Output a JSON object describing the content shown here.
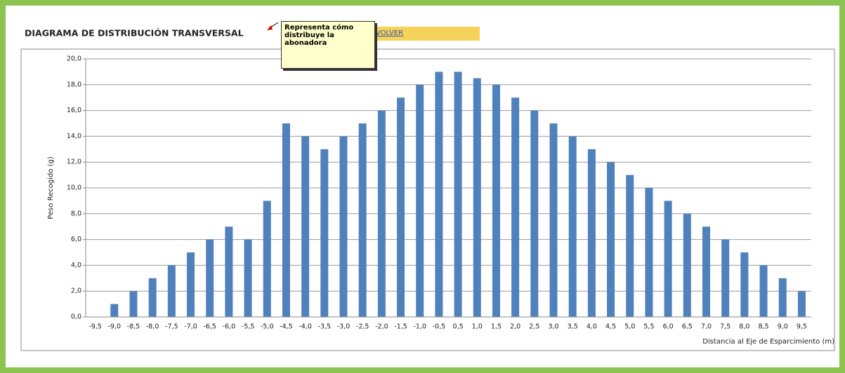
{
  "chart_data": {
    "type": "bar",
    "title": "DIAGRAMA DE DISTRIBUCIÓN TRANSVERSAL",
    "x_label": "Distancia al Eje de Esparcimiento (m)",
    "y_label": "Peso Recogido (g)",
    "categories": [
      "-9,5",
      "-9,0",
      "-8,5",
      "-8,0",
      "-7,5",
      "-7,0",
      "-6,5",
      "-6,0",
      "-5,5",
      "-5,0",
      "-4,5",
      "-4,0",
      "-3,5",
      "-3,0",
      "-2,5",
      "-2,0",
      "-1,5",
      "-1,0",
      "-0,5",
      "0,5",
      "1,0",
      "1,5",
      "2,0",
      "2,5",
      "3,0",
      "3,5",
      "4,0",
      "4,5",
      "5,0",
      "5,5",
      "6,0",
      "6,5",
      "7,0",
      "7,5",
      "8,0",
      "8,5",
      "9,0",
      "9,5"
    ],
    "values": [
      0,
      1,
      2,
      3,
      4,
      5,
      6,
      7,
      6,
      9,
      15,
      14,
      13,
      14,
      15,
      16,
      17,
      18,
      19,
      19,
      18.5,
      18,
      17,
      16,
      15,
      14,
      13,
      12,
      11,
      10,
      9,
      8,
      7,
      6,
      5,
      4,
      3,
      2
    ],
    "color": "#4f81bd",
    "ylim": [
      0,
      20
    ],
    "yticks": [
      {
        "value": 0,
        "label": "0,0"
      },
      {
        "value": 2,
        "label": "2,0"
      },
      {
        "value": 4,
        "label": "4,0"
      },
      {
        "value": 6,
        "label": "6,0"
      },
      {
        "value": 8,
        "label": "8,0"
      },
      {
        "value": 10,
        "label": "10,0"
      },
      {
        "value": 12,
        "label": "12,0"
      },
      {
        "value": 14,
        "label": "14,0"
      },
      {
        "value": 16,
        "label": "16,0"
      },
      {
        "value": 18,
        "label": "18,0"
      },
      {
        "value": 20,
        "label": "20,0"
      }
    ],
    "grid": true
  },
  "comment": "Representa cómo distribuye la abonadora",
  "link": "VOLVER"
}
